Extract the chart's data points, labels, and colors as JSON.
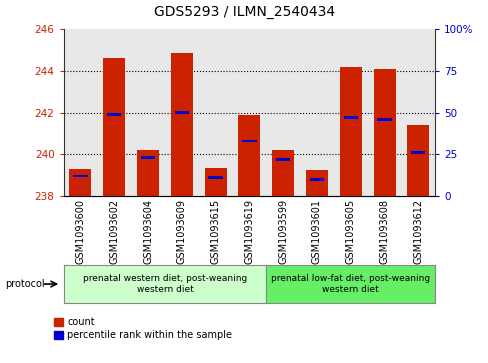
{
  "title": "GDS5293 / ILMN_2540434",
  "samples": [
    "GSM1093600",
    "GSM1093602",
    "GSM1093604",
    "GSM1093609",
    "GSM1093615",
    "GSM1093619",
    "GSM1093599",
    "GSM1093601",
    "GSM1093605",
    "GSM1093608",
    "GSM1093612"
  ],
  "count_values": [
    239.3,
    244.6,
    240.2,
    244.85,
    239.35,
    241.9,
    240.2,
    239.25,
    244.2,
    244.1,
    241.4
  ],
  "percentile_values": [
    12,
    49,
    23,
    50,
    11,
    33,
    22,
    10,
    47,
    46,
    26
  ],
  "ymin": 238,
  "ymax": 246,
  "yticks": [
    238,
    240,
    242,
    244,
    246
  ],
  "right_yticks": [
    0,
    25,
    50,
    75,
    100
  ],
  "bar_color": "#cc2200",
  "percentile_color": "#0000cc",
  "plot_bg": "#e8e8e8",
  "group1_label": "prenatal western diet, post-weaning\nwestern diet",
  "group2_label": "prenatal low-fat diet, post-weaning\nwestern diet",
  "group1_color": "#ccffcc",
  "group2_color": "#66ee66",
  "protocol_label": "protocol",
  "legend_count_label": "count",
  "legend_percentile_label": "percentile rank within the sample",
  "title_fontsize": 10,
  "tick_fontsize": 7.5,
  "label_fontsize": 7
}
